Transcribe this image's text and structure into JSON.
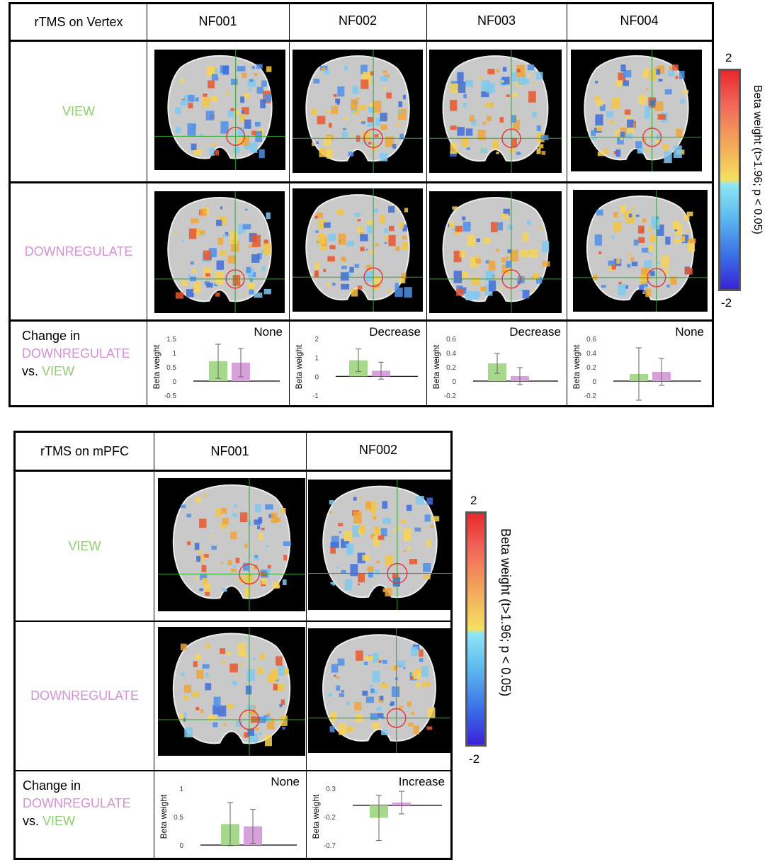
{
  "top": {
    "corner": "rTMS on Vertex",
    "subjects": [
      "NF001",
      "NF002",
      "NF003",
      "NF004"
    ],
    "row_view": "VIEW",
    "row_down": "DOWNREGULATE",
    "change": {
      "line1": "Change in",
      "line2": "DOWNREGULATE",
      "line3": "vs.",
      "line4": "VIEW"
    }
  },
  "bottom": {
    "corner": "rTMS on mPFC",
    "subjects": [
      "NF001",
      "NF002"
    ],
    "row_view": "VIEW",
    "row_down": "DOWNREGULATE",
    "change": {
      "line1": "Change in",
      "line2": "DOWNREGULATE",
      "line3": "vs.",
      "line4": "VIEW"
    }
  },
  "colorbar": {
    "max": "2",
    "min": "-2",
    "title": "Beta weight (t>1.96; p < 0.05)"
  },
  "colors": {
    "view": "#8fcf6f",
    "down": "#d590d6",
    "view_bar": "#a6d98a",
    "down_bar": "#d9a1db"
  },
  "chart_data": [
    {
      "type": "bar",
      "panel": "rTMS on Vertex",
      "subject": "NF001",
      "annotation": "None",
      "ylabel": "Beta weight",
      "yticks": [
        "1.5",
        "1",
        "0.5",
        "0",
        "-0.5"
      ],
      "ylim": [
        -0.5,
        1.5
      ],
      "series": [
        {
          "values": [
            0.7
          ],
          "err": [
            0.6
          ]
        },
        {
          "values": [
            0.65
          ],
          "err": [
            0.5
          ]
        }
      ]
    },
    {
      "type": "bar",
      "panel": "rTMS on Vertex",
      "subject": "NF002",
      "annotation": "Decrease",
      "ylabel": "Beta weight",
      "yticks": [
        "2",
        "1",
        "0",
        "-1"
      ],
      "ylim": [
        -1,
        2
      ],
      "series": [
        {
          "values": [
            0.85
          ],
          "err": [
            0.6
          ]
        },
        {
          "values": [
            0.3
          ],
          "err": [
            0.45
          ]
        }
      ]
    },
    {
      "type": "bar",
      "panel": "rTMS on Vertex",
      "subject": "NF003",
      "annotation": "Decrease",
      "ylabel": "Beta weight",
      "yticks": [
        "0.6",
        "0.4",
        "0.2",
        "0",
        "-0.2"
      ],
      "ylim": [
        -0.2,
        0.6
      ],
      "series": [
        {
          "values": [
            0.25
          ],
          "err": [
            0.14
          ]
        },
        {
          "values": [
            0.07
          ],
          "err": [
            0.12
          ]
        }
      ]
    },
    {
      "type": "bar",
      "panel": "rTMS on Vertex",
      "subject": "NF004",
      "annotation": "None",
      "ylabel": "Beta weight",
      "yticks": [
        "0.6",
        "0.4",
        "0.2",
        "0",
        "-0.2"
      ],
      "ylim": [
        -0.2,
        0.6
      ],
      "series": [
        {
          "values": [
            0.1
          ],
          "err": [
            0.37
          ]
        },
        {
          "values": [
            0.13
          ],
          "err": [
            0.19
          ]
        }
      ]
    },
    {
      "type": "bar",
      "panel": "rTMS on mPFC",
      "subject": "NF001",
      "annotation": "None",
      "ylabel": "Beta weight",
      "yticks": [
        "1",
        "0.5",
        "0"
      ],
      "ylim": [
        0,
        1
      ],
      "series": [
        {
          "values": [
            0.37
          ],
          "err": [
            0.38
          ]
        },
        {
          "values": [
            0.33
          ],
          "err": [
            0.3
          ]
        }
      ]
    },
    {
      "type": "bar",
      "panel": "rTMS on mPFC",
      "subject": "NF002",
      "annotation": "Increase",
      "ylabel": "Beta weight",
      "yticks": [
        "0.3",
        "-0.2",
        "-0.7"
      ],
      "ylim": [
        -0.7,
        0.3
      ],
      "series": [
        {
          "values": [
            -0.22
          ],
          "err": [
            0.4
          ]
        },
        {
          "values": [
            0.05
          ],
          "err": [
            0.2
          ]
        }
      ]
    }
  ]
}
